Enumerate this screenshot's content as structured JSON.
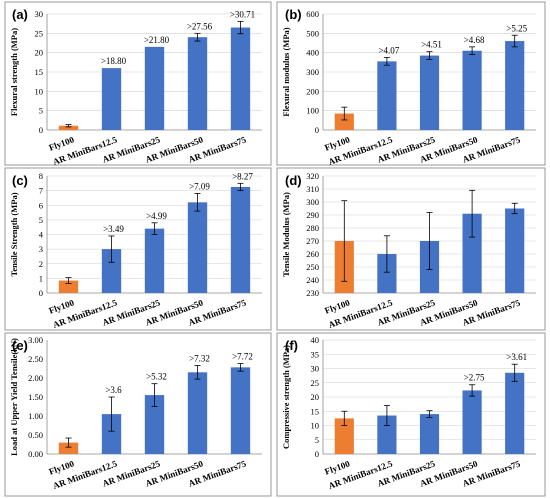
{
  "figure": {
    "colors": {
      "fly": "#ED7D31",
      "ar": "#4472C4"
    },
    "categories": [
      "Fly100",
      "AR MiniBars12.5",
      "AR MiniBars25",
      "AR MiniBars50",
      "AR MiniBars75"
    ]
  },
  "chart_data": [
    {
      "panel": "(a)",
      "type": "bar",
      "ylabel": "Flexural strength (MPa)",
      "ylim": [
        0,
        30
      ],
      "yticks": [
        0,
        5,
        10,
        15,
        20,
        25,
        30
      ],
      "values": [
        1.1,
        16.0,
        21.5,
        24.0,
        26.5
      ],
      "errors": [
        0.3,
        0.0,
        0.0,
        1.0,
        1.6
      ],
      "labels": [
        "",
        ">18.80",
        ">21.80",
        ">27.56",
        ">30.71"
      ],
      "grid": true
    },
    {
      "panel": "(b)",
      "type": "bar",
      "ylabel": "Flexural modulus (MPa)",
      "ylim": [
        0,
        600
      ],
      "yticks": [
        0,
        100,
        200,
        300,
        400,
        500,
        600
      ],
      "values": [
        85,
        355,
        385,
        410,
        460
      ],
      "errors": [
        33,
        20,
        20,
        20,
        30
      ],
      "labels": [
        "",
        ">4.07",
        ">4.51",
        ">4.68",
        ">5.25"
      ],
      "grid": true
    },
    {
      "panel": "(c)",
      "type": "bar",
      "ylabel": "Tensile Strength (MPa)",
      "ylim": [
        0,
        8
      ],
      "yticks": [
        0,
        1,
        2,
        3,
        4,
        5,
        6,
        7,
        8
      ],
      "values": [
        0.85,
        3.0,
        4.4,
        6.2,
        7.25
      ],
      "errors": [
        0.2,
        0.9,
        0.4,
        0.6,
        0.25
      ],
      "labels": [
        "",
        ">3.49",
        ">4.99",
        ">7.09",
        ">8.27"
      ],
      "grid": true
    },
    {
      "panel": "(d)",
      "type": "bar",
      "ylabel": "Tensile Modulus (MPa)",
      "ylim": [
        230,
        320
      ],
      "yticks": [
        230,
        240,
        250,
        260,
        270,
        280,
        290,
        300,
        310,
        320
      ],
      "values": [
        270,
        260,
        270,
        291,
        295
      ],
      "errors": [
        31,
        14,
        22,
        18,
        4
      ],
      "labels": [
        "",
        "",
        "",
        "",
        ""
      ],
      "grid": true
    },
    {
      "panel": "(e)",
      "type": "bar",
      "ylabel": "Load at Upper Yield Tensile(kN)",
      "ylim": [
        0,
        3
      ],
      "yticks": [
        "0.00",
        "0.50",
        "1.00",
        "1.50",
        "2.00",
        "2.50",
        "3.00"
      ],
      "values": [
        0.3,
        1.05,
        1.55,
        2.15,
        2.28
      ],
      "errors": [
        0.12,
        0.45,
        0.3,
        0.18,
        0.1
      ],
      "labels": [
        "",
        ">3.6",
        ">5.32",
        ">7.32",
        ">7.72"
      ],
      "grid": false
    },
    {
      "panel": "(f)",
      "type": "bar",
      "ylabel": "Compressive strength (MPa)",
      "ylim": [
        0,
        40
      ],
      "yticks": [
        0,
        5,
        10,
        15,
        20,
        25,
        30,
        35,
        40
      ],
      "values": [
        12.5,
        13.5,
        14.0,
        22.3,
        28.5
      ],
      "errors": [
        2.5,
        3.5,
        1.2,
        2.0,
        3.0
      ],
      "labels": [
        "",
        "",
        "",
        ">2.75",
        ">3.61"
      ],
      "grid": true
    }
  ]
}
